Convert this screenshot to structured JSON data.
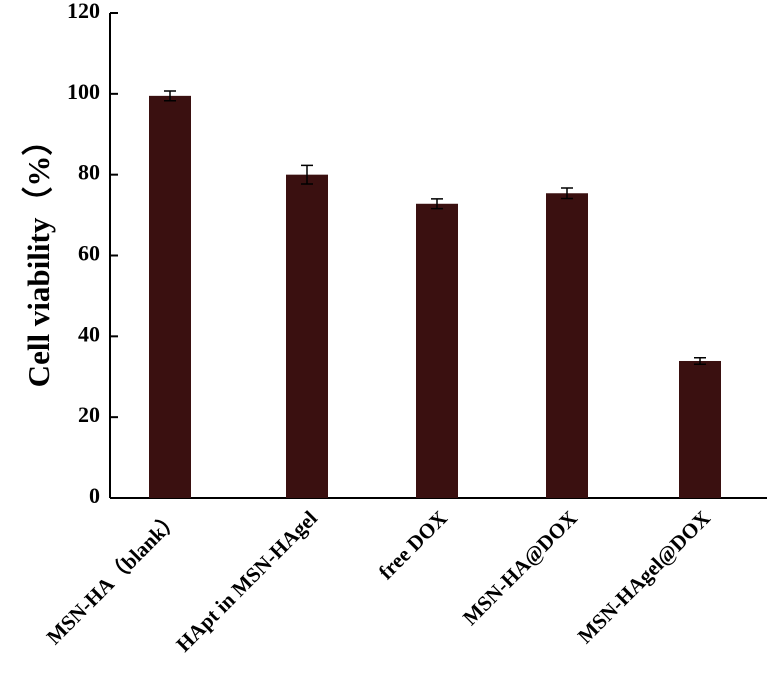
{
  "chart_data": {
    "type": "bar",
    "ylabel": "Cell viability（%）",
    "categories": [
      "MSN-HA（blank）",
      "HApt in MSN-HAgel",
      "free DOX",
      "MSN-HA@DOX",
      "MSN-HAgel@DOX"
    ],
    "values": [
      99.5,
      80,
      72.8,
      75.4,
      33.9
    ],
    "errors": [
      1.2,
      2.3,
      1.2,
      1.3,
      0.8
    ],
    "color": "#3a1010",
    "ylim": [
      0,
      120
    ],
    "yticks": [
      0,
      20,
      40,
      60,
      80,
      100,
      120
    ]
  }
}
